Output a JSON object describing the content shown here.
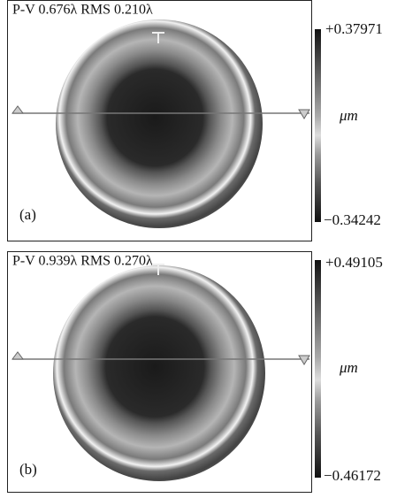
{
  "panels": [
    {
      "header": "P-V 0.676λ RMS 0.210λ",
      "scale_max": "+0.37971",
      "unit": "μm",
      "scale_min": "−0.34242",
      "label": "(a)"
    },
    {
      "header": "P-V 0.939λ RMS 0.270λ",
      "scale_max": "+0.49105",
      "unit": "μm",
      "scale_min": "−0.46172",
      "label": "(b)"
    }
  ]
}
